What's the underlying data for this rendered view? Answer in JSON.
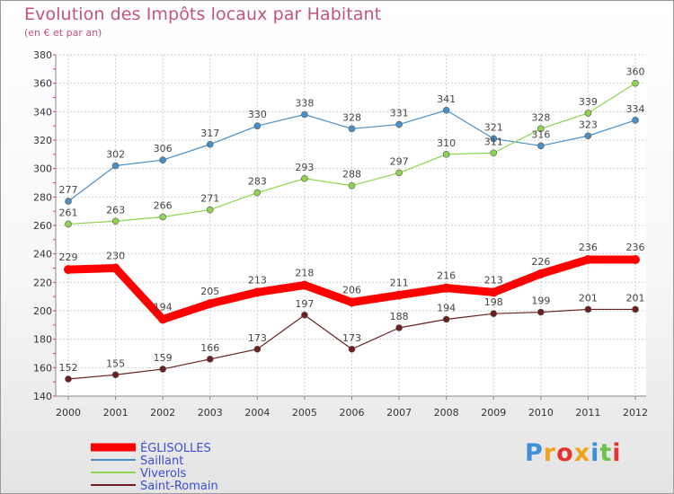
{
  "title": "Evolution des Impôts locaux par Habitant",
  "subtitle": "(en € et par an)",
  "logo": {
    "text": "Proxiti",
    "letter_colors": [
      "#3d8fd6",
      "#f0a21c",
      "#e3342f",
      "#f0a21c",
      "#3d8fd6",
      "#6cc24a",
      "#e3342f"
    ]
  },
  "chart_data": {
    "type": "line",
    "x": [
      "2000",
      "2001",
      "2002",
      "2003",
      "2004",
      "2005",
      "2006",
      "2007",
      "2008",
      "2009",
      "2010",
      "2011",
      "2012"
    ],
    "ylim": [
      140,
      380
    ],
    "yticks": [
      "140",
      "160",
      "180",
      "200",
      "220",
      "240",
      "260",
      "280",
      "300",
      "320",
      "340",
      "360",
      "380"
    ],
    "grid": true,
    "legend_position": "bottom-left",
    "series": [
      {
        "name": "ÉGLISOLLES",
        "color": "#ff0000",
        "values": [
          229,
          230,
          194,
          205,
          213,
          218,
          206,
          211,
          216,
          213,
          226,
          236,
          236
        ],
        "labels": [
          "229",
          "230",
          "194",
          "205",
          "213",
          "218",
          "206",
          "211",
          "216",
          "213",
          "226",
          "236",
          "236"
        ]
      },
      {
        "name": "Saillant",
        "color": "#4a8fc6",
        "values": [
          277,
          302,
          306,
          317,
          330,
          338,
          328,
          331,
          341,
          321,
          316,
          323,
          334
        ],
        "labels": [
          "277",
          "302",
          "306",
          "317",
          "330",
          "338",
          "328",
          "331",
          "341",
          "321",
          "316",
          "323",
          "334"
        ]
      },
      {
        "name": "Viverols",
        "color": "#8ed44f",
        "values": [
          261,
          263,
          266,
          271,
          283,
          293,
          288,
          297,
          310,
          311,
          328,
          339,
          360
        ],
        "labels": [
          "261",
          "263",
          "266",
          "271",
          "283",
          "293",
          "288",
          "297",
          "310",
          "311",
          "328",
          "339",
          "360"
        ]
      },
      {
        "name": "Saint-Romain",
        "color": "#6b1f1f",
        "values": [
          152,
          155,
          159,
          166,
          173,
          197,
          173,
          188,
          194,
          198,
          199,
          201,
          201
        ],
        "labels": [
          "152",
          "155",
          "159",
          "166",
          "173",
          "197",
          "173",
          "188",
          "194",
          "198",
          "199",
          "201",
          "201"
        ]
      }
    ]
  }
}
